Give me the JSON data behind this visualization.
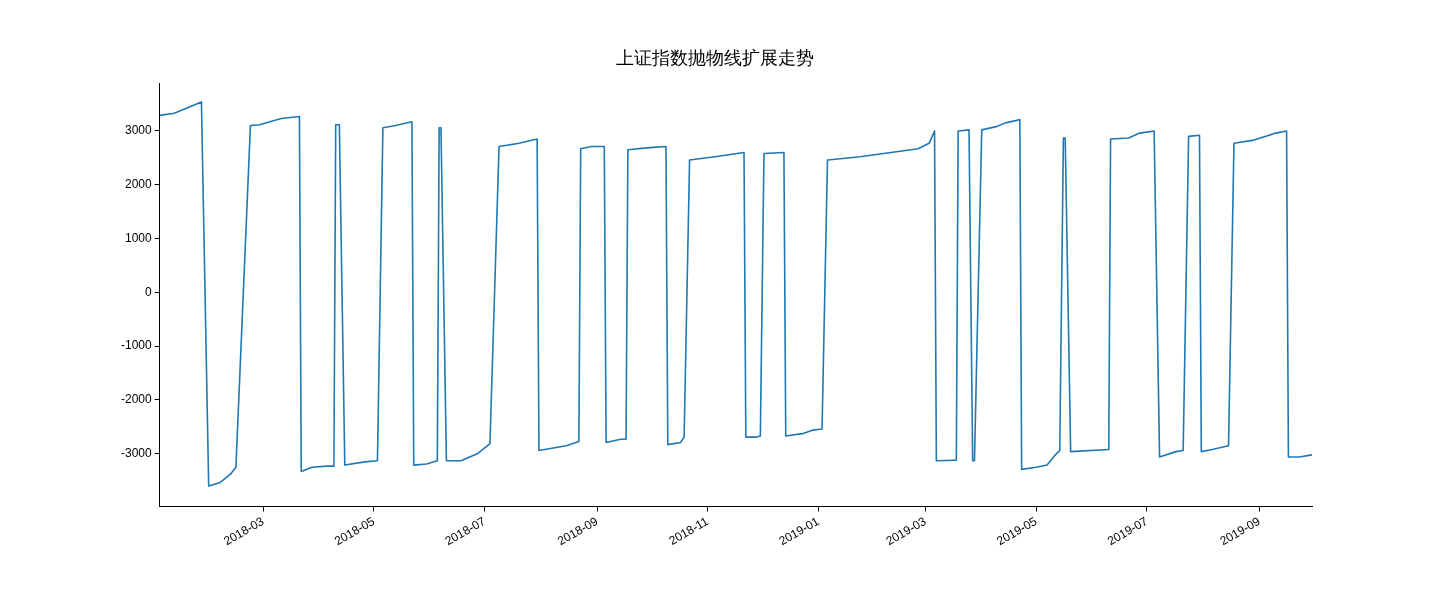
{
  "chart_data": {
    "type": "line",
    "title": "上证指数抛物线扩展走势",
    "x": [
      "2018-01-03",
      "2018-01-11",
      "2018-01-26",
      "2018-01-30",
      "2018-02-05",
      "2018-02-11",
      "2018-02-14",
      "2018-02-22",
      "2018-02-27",
      "2018-03-11",
      "2018-03-21",
      "2018-03-22",
      "2018-03-28",
      "2018-04-05",
      "2018-04-09",
      "2018-04-10",
      "2018-04-12",
      "2018-04-15",
      "2018-04-26",
      "2018-05-03",
      "2018-05-06",
      "2018-05-13",
      "2018-05-22",
      "2018-05-23",
      "2018-05-30",
      "2018-06-05",
      "2018-06-06",
      "2018-06-07",
      "2018-06-10",
      "2018-06-18",
      "2018-06-27",
      "2018-07-04",
      "2018-07-09",
      "2018-07-20",
      "2018-07-30",
      "2018-07-31",
      "2018-08-15",
      "2018-08-22",
      "2018-08-23",
      "2018-08-29",
      "2018-09-05",
      "2018-09-06",
      "2018-09-14",
      "2018-09-17",
      "2018-09-18",
      "2018-09-30",
      "2018-10-09",
      "2018-10-10",
      "2018-10-17",
      "2018-10-19",
      "2018-10-22",
      "2018-11-05",
      "2018-11-21",
      "2018-11-22",
      "2018-11-28",
      "2018-11-30",
      "2018-12-02",
      "2018-12-13",
      "2018-12-14",
      "2018-12-24",
      "2018-12-29",
      "2019-01-03",
      "2019-01-06",
      "2019-01-24",
      "2019-02-10",
      "2019-02-25",
      "2019-03-03",
      "2019-03-06",
      "2019-03-07",
      "2019-03-17",
      "2019-03-18",
      "2019-03-19",
      "2019-03-25",
      "2019-03-27",
      "2019-03-28",
      "2019-04-01",
      "2019-04-09",
      "2019-04-14",
      "2019-04-22",
      "2019-04-23",
      "2019-05-01",
      "2019-05-07",
      "2019-05-11",
      "2019-05-14",
      "2019-05-16",
      "2019-05-17",
      "2019-05-20",
      "2019-06-10",
      "2019-06-11",
      "2019-06-21",
      "2019-06-27",
      "2019-07-05",
      "2019-07-08",
      "2019-07-17",
      "2019-07-21",
      "2019-07-24",
      "2019-07-30",
      "2019-07-31",
      "2019-08-06",
      "2019-08-15",
      "2019-08-18",
      "2019-08-29",
      "2019-09-10",
      "2019-09-16",
      "2019-09-17",
      "2019-09-23",
      "2019-09-30"
    ],
    "series": [
      {
        "color": "#1f77b4",
        "values": [
          3290,
          3330,
          3540,
          -3600,
          -3540,
          -3380,
          -3250,
          3100,
          3115,
          3230,
          3270,
          -3330,
          -3250,
          -3230,
          -3230,
          3115,
          3115,
          -3210,
          -3150,
          -3130,
          3060,
          3100,
          3170,
          -3210,
          -3190,
          -3130,
          3060,
          3060,
          -3130,
          -3130,
          -3000,
          -2810,
          2710,
          2770,
          2850,
          -2940,
          -2850,
          -2770,
          2670,
          2710,
          2710,
          -2790,
          -2730,
          -2730,
          2650,
          2690,
          2710,
          -2830,
          -2790,
          -2690,
          2460,
          2520,
          2600,
          -2690,
          -2690,
          -2670,
          2580,
          2600,
          -2670,
          -2620,
          -2560,
          -2540,
          2460,
          2520,
          2600,
          2670,
          2770,
          3000,
          -3130,
          -3120,
          -3120,
          3000,
          3020,
          -3130,
          -3130,
          3020,
          3080,
          3150,
          3210,
          -3290,
          -3250,
          -3210,
          -3040,
          -2940,
          2870,
          2870,
          -2960,
          -2920,
          2850,
          2870,
          2960,
          3000,
          -3060,
          -2960,
          -2940,
          2900,
          2920,
          -2960,
          -2920,
          -2850,
          2770,
          2830,
          2960,
          3000,
          -3060,
          -3060,
          -3020
        ]
      }
    ],
    "xlim": [
      "2018-01-03",
      "2019-09-30"
    ],
    "xticks": [
      {
        "value": "2018-03-01",
        "label": "2018-03"
      },
      {
        "value": "2018-05-01",
        "label": "2018-05"
      },
      {
        "value": "2018-07-01",
        "label": "2018-07"
      },
      {
        "value": "2018-09-01",
        "label": "2018-09"
      },
      {
        "value": "2018-11-01",
        "label": "2018-11"
      },
      {
        "value": "2019-01-01",
        "label": "2019-01"
      },
      {
        "value": "2019-03-01",
        "label": "2019-03"
      },
      {
        "value": "2019-05-01",
        "label": "2019-05"
      },
      {
        "value": "2019-07-01",
        "label": "2019-07"
      },
      {
        "value": "2019-09-01",
        "label": "2019-09"
      }
    ],
    "ylim": [
      -3980,
      3880
    ],
    "yticks": [
      -3000,
      -2000,
      -1000,
      0,
      1000,
      2000,
      3000
    ],
    "grid": false,
    "legend": false,
    "marker": "none",
    "line_style": "solid"
  }
}
